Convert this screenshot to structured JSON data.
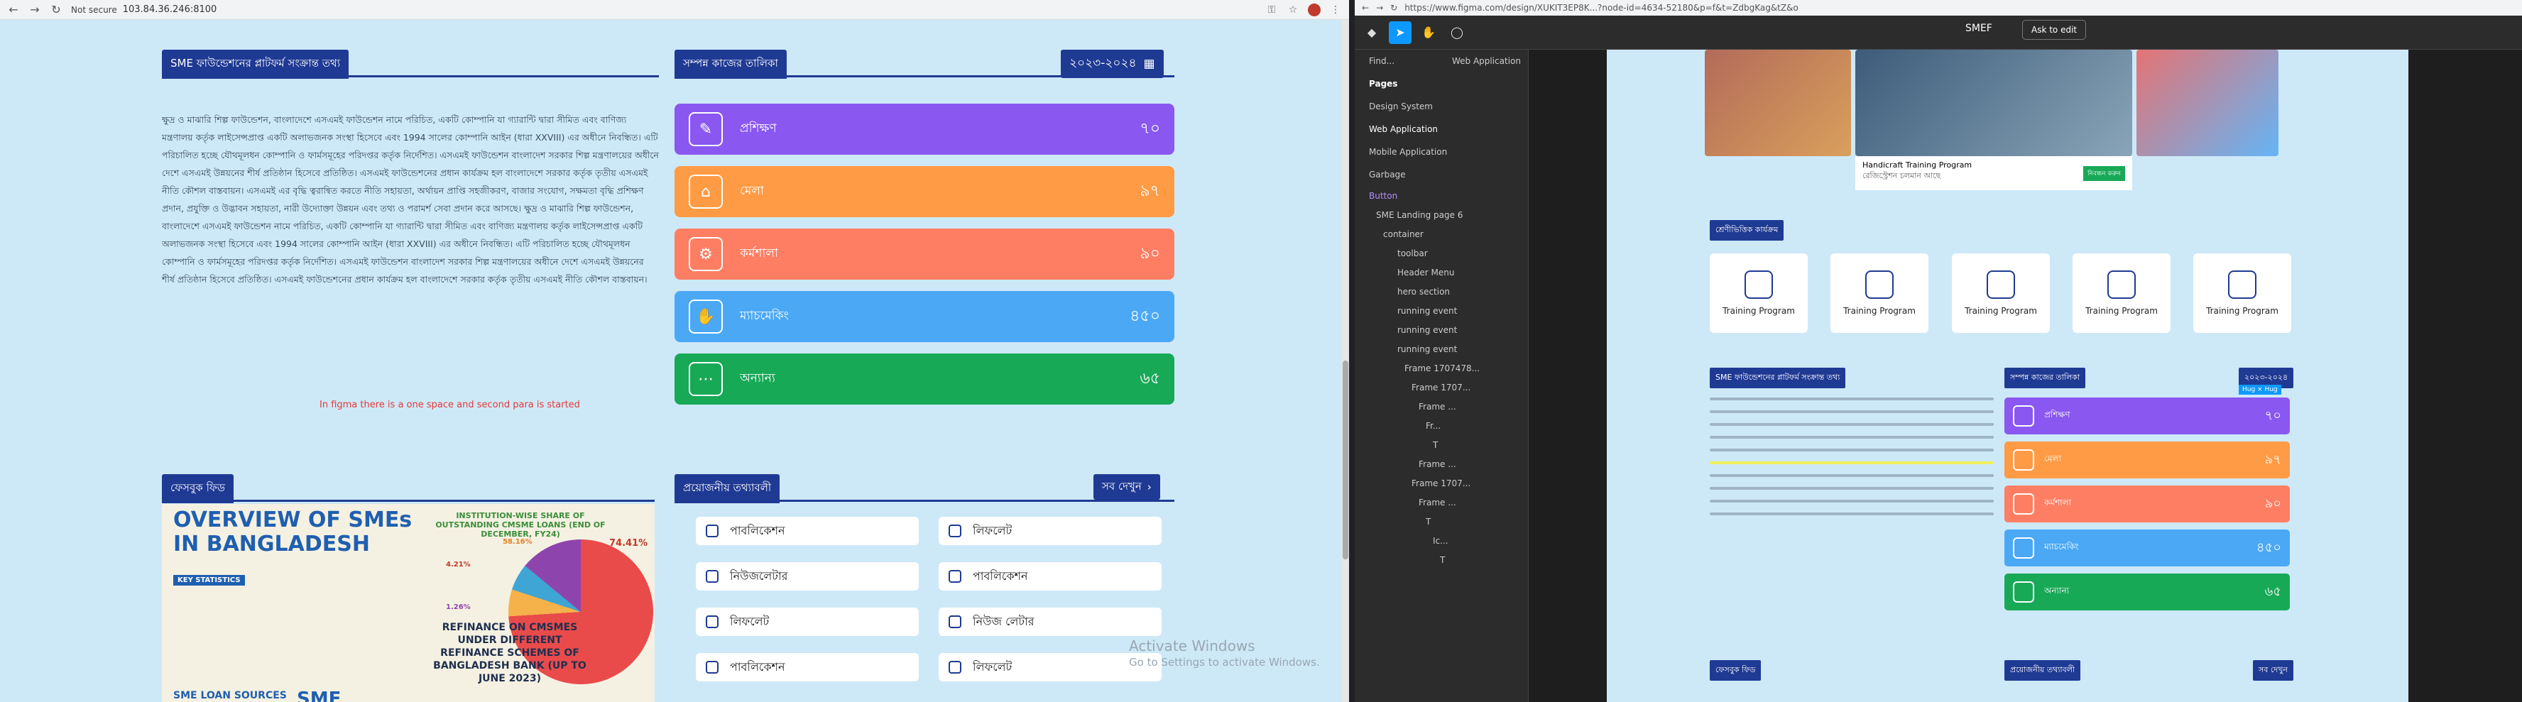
{
  "browser_left": {
    "not_secure_label": "Not secure",
    "url": "103.84.36.246:8100"
  },
  "page": {
    "platform_title": "SME ফাউন্ডেশনের প্লাটফর্ম সংক্রান্ত তথ্য",
    "activity_title": "সম্পন্ন কাজের তালিকা",
    "fiscal_year": "২০২৩-২০২৪",
    "body_text": "ক্ষুদ্র ও মাঝারি শিল্প ফাউন্ডেশন, বাংলাদেশে এসএমই ফাউন্ডেশন নামে পরিচিত, একটি কোম্পানি যা গ্যারান্টি দ্বারা সীমিত এবং বাণিজ্য মন্ত্রণালয় কর্তৃক লাইসেন্সপ্রাপ্ত একটি অলাভজনক সংস্থা হিসেবে এবং 1994 সালের কোম্পানি আইন (ধারা XXVIII) এর অধীনে নিবন্ধিত। এটি পরিচালিত হচ্ছে যৌথমূলধন কোম্পানি ও ফার্মসমূহের পরিদপ্তর কর্তৃক নির্দেশিত। এসএমই ফাউন্ডেশন বাংলাদেশ সরকার শিল্প মন্ত্রণালয়ের অধীনে দেশে এসএমই উন্নয়নের শীর্ষ প্রতিষ্ঠান হিসেবে প্রতিষ্ঠিত। এসএমই ফাউন্ডেশনের প্রধান কার্যক্রম হল বাংলাদেশে সরকার কর্তৃক তৃতীয় এসএমই নীতি কৌশল বাস্তবায়ন। এসএমই এর বৃদ্ধি ত্বরান্বিত করতে নীতি সহায়তা, অর্থায়ন প্রাপ্তি সহজীকরণ, বাজার সংযোগ, সক্ষমতা বৃদ্ধি প্রশিক্ষণ প্রদান, প্রযুক্তি ও উদ্ভাবন সহায়তা, নারী উদ্যোক্তা উন্নয়ন এবং তথ্য ও পরামর্শ সেবা প্রদান করে আসছে। ক্ষুদ্র ও মাঝারি শিল্প ফাউন্ডেশন, বাংলাদেশে এসএমই ফাউন্ডেশন নামে পরিচিত, একটি কোম্পানি যা গ্যারান্টি দ্বারা সীমিত এবং বাণিজ্য মন্ত্রণালয় কর্তৃক লাইসেন্সপ্রাপ্ত একটি অলাভজনক সংস্থা হিসেবে এবং 1994 সালের কোম্পানি আইন (ধারা XXVIII) এর অধীনে নিবন্ধিত। এটি পরিচালিত হচ্ছে যৌথমূলধন কোম্পানি ও ফার্মসমূহের পরিদপ্তর কর্তৃক নির্দেশিত। এসএমই ফাউন্ডেশন বাংলাদেশ সরকার শিল্প মন্ত্রণালয়ের অধীনে দেশে এসএমই উন্নয়নের শীর্ষ প্রতিষ্ঠান হিসেবে প্রতিষ্ঠিত। এসএমই ফাউন্ডেশনের প্রধান কার্যক্রম হল বাংলাদেশে সরকার কর্তৃক তৃতীয় এসএমই নীতি কৌশল বাস্তবায়ন।",
    "note": "In figma there is a one space and second para is started",
    "stats": [
      {
        "label": "প্রশিক্ষণ",
        "value": "৭০",
        "color": "#8a57f0"
      },
      {
        "label": "মেলা",
        "value": "৯৭",
        "color": "#ff9b45"
      },
      {
        "label": "কর্মশালা",
        "value": "৯০",
        "color": "#fd7e63"
      },
      {
        "label": "ম্যাচমেকিং",
        "value": "৪৫০",
        "color": "#4aa8f5"
      },
      {
        "label": "অন্যান্য",
        "value": "৬৫",
        "color": "#18a957"
      }
    ],
    "facebook_title": "ফেসবুক ফিড",
    "info_title": "প্রয়োজনীয় তথ্যাবলী",
    "see_all": "সব দেখুন",
    "info_items": [
      "পাবলিকেশন",
      "লিফলেট",
      "নিউজলেটার",
      "পাবলিকেশন",
      "লিফলেট",
      "নিউজ লেটার",
      "পাবলিকেশন",
      "লিফলেট"
    ],
    "fb_heading1": "OVERVIEW OF SMEs",
    "fb_heading2": "IN BANGLADESH",
    "fb_share_title": "INSTITUTION-WISE SHARE OF OUTSTANDING CMSME LOANS (END OF DECEMBER, FY24)",
    "fb_refinance": "REFINANCE ON CMSMES UNDER DIFFERENT REFINANCE SCHEMES OF BANGLADESH BANK (UP TO JUNE 2023)",
    "fb_pct1": "74.41%",
    "fb_pct2": "4.21%",
    "fb_pct3": "1.26%",
    "fb_pct4": "58.16%",
    "fb_loan": "SME LOAN SOURCES",
    "fb_key": "KEY STATISTICS",
    "fb_big": "SME",
    "watermark1": "Activate Windows",
    "watermark2": "Go to Settings to activate Windows."
  },
  "figma": {
    "url": "https://www.figma.com/design/XUKIT3EP8K...?node-id=4634-52180&p=f&t=ZdbgKag&tZ&o",
    "file_name": "SMEF",
    "ask_to_edit": "Ask to edit",
    "search_placeholder": "Find...",
    "page_filter": "Web Application",
    "pages_header": "Pages",
    "pages": [
      "Design System",
      "Web Application",
      "Mobile Application",
      "Garbage"
    ],
    "layers": [
      "Button",
      "SME Landing page 6",
      "container",
      "toolbar",
      "Header Menu",
      "hero section",
      "running event",
      "running event",
      "running event",
      "Frame 1707478...",
      "Frame 1707...",
      "Frame ...",
      "Fr...",
      "T",
      "Frame ...",
      "Frame 1707...",
      "Frame ...",
      "T",
      "Ic...",
      "T"
    ],
    "frame": {
      "photo_caption_title": "Handicraft Training Program",
      "photo_caption_sub": "রেজিস্ট্রেশন চলমান আছে",
      "register_btn": "নিবন্ধন করুন",
      "section_label": "শ্রেণীভিত্তিক কার্যক্রম",
      "cards": [
        "Training Program",
        "Training Program",
        "Training Program",
        "Training Program",
        "Training Program"
      ],
      "platform_title": "SME ফাউন্ডেশনের প্লাটফর্ম সংক্রান্ত তথ্য",
      "activity_title": "সম্পন্ন কাজের তালিকা",
      "fiscal": "২০২৩-২০২৪",
      "hug_badge": "Hug × Hug",
      "fb_title": "ফেসবুক ফিড",
      "info_title": "প্রয়োজনীয় তথ্যাবলী",
      "see_all": "সব দেখুন"
    }
  }
}
